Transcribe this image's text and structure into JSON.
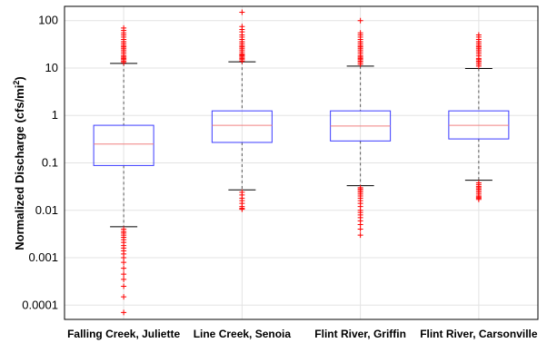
{
  "chart_data": {
    "type": "boxplot",
    "scale": "log",
    "grid": true,
    "ylim": [
      5e-05,
      200
    ],
    "ylabel_main": "Normalized Discharge (cfs/mi",
    "ylabel_sup": "2",
    "ylabel_end": ")",
    "yticks": [
      {
        "value": 100,
        "label": "100"
      },
      {
        "value": 10,
        "label": "10"
      },
      {
        "value": 1,
        "label": "1"
      },
      {
        "value": 0.1,
        "label": "0.1"
      },
      {
        "value": 0.01,
        "label": "0.01"
      },
      {
        "value": 0.001,
        "label": "0.001"
      },
      {
        "value": 0.0001,
        "label": "0.0001"
      }
    ],
    "categories": [
      "Falling Creek, Juliette",
      "Line Creek, Senoia",
      "Flint River, Griffin",
      "Flint River, Carsonville"
    ],
    "boxes": [
      {
        "whisker_low": 0.0045,
        "q1": 0.088,
        "median": 0.25,
        "q3": 0.62,
        "whisker_high": 12.5,
        "outliers_high": [
          13,
          14,
          15,
          16,
          17,
          18,
          20,
          22,
          24,
          26,
          28,
          30,
          33,
          36,
          40,
          45,
          50,
          55,
          62,
          70
        ],
        "outliers_low": [
          0.004,
          0.0036,
          0.0033,
          0.003,
          0.0027,
          0.0024,
          0.0021,
          0.0018,
          0.0016,
          0.0014,
          0.0012,
          0.001,
          0.0008,
          0.0006,
          0.00045,
          0.00035,
          0.00025,
          0.00015,
          7e-05
        ]
      },
      {
        "whisker_low": 0.027,
        "q1": 0.27,
        "median": 0.62,
        "q3": 1.25,
        "whisker_high": 13.5,
        "outliers_high": [
          14,
          15,
          16,
          17,
          18,
          19,
          20,
          22,
          24,
          26,
          28,
          30,
          33,
          36,
          40,
          45,
          50,
          58,
          65,
          75,
          150
        ],
        "outliers_low": [
          0.024,
          0.021,
          0.018,
          0.016,
          0.014,
          0.012,
          0.011,
          0.0105
        ]
      },
      {
        "whisker_low": 0.033,
        "q1": 0.29,
        "median": 0.6,
        "q3": 1.25,
        "whisker_high": 11,
        "outliers_high": [
          12,
          13,
          14,
          15,
          16,
          17,
          18,
          20,
          22,
          24,
          26,
          28,
          30,
          33,
          36,
          40,
          45,
          50,
          55,
          100
        ],
        "outliers_low": [
          0.03,
          0.028,
          0.026,
          0.024,
          0.022,
          0.02,
          0.018,
          0.016,
          0.014,
          0.012,
          0.01,
          0.009,
          0.008,
          0.007,
          0.006,
          0.005,
          0.004,
          0.003
        ]
      },
      {
        "whisker_low": 0.043,
        "q1": 0.32,
        "median": 0.62,
        "q3": 1.25,
        "whisker_high": 9.8,
        "outliers_high": [
          11,
          12,
          13,
          14,
          15,
          16,
          18,
          20,
          22,
          24,
          26,
          28,
          30,
          33,
          36,
          40,
          45,
          50
        ],
        "outliers_low": [
          0.038,
          0.035,
          0.032,
          0.03,
          0.028,
          0.026,
          0.024,
          0.022,
          0.02,
          0.019,
          0.018,
          0.017
        ]
      }
    ]
  },
  "colors": {
    "box": "#3b3bff",
    "median": "#f08080",
    "outlier": "#ff0000",
    "whisker": "#555555",
    "grid": "#e3e3e3",
    "axis": "#000000"
  }
}
